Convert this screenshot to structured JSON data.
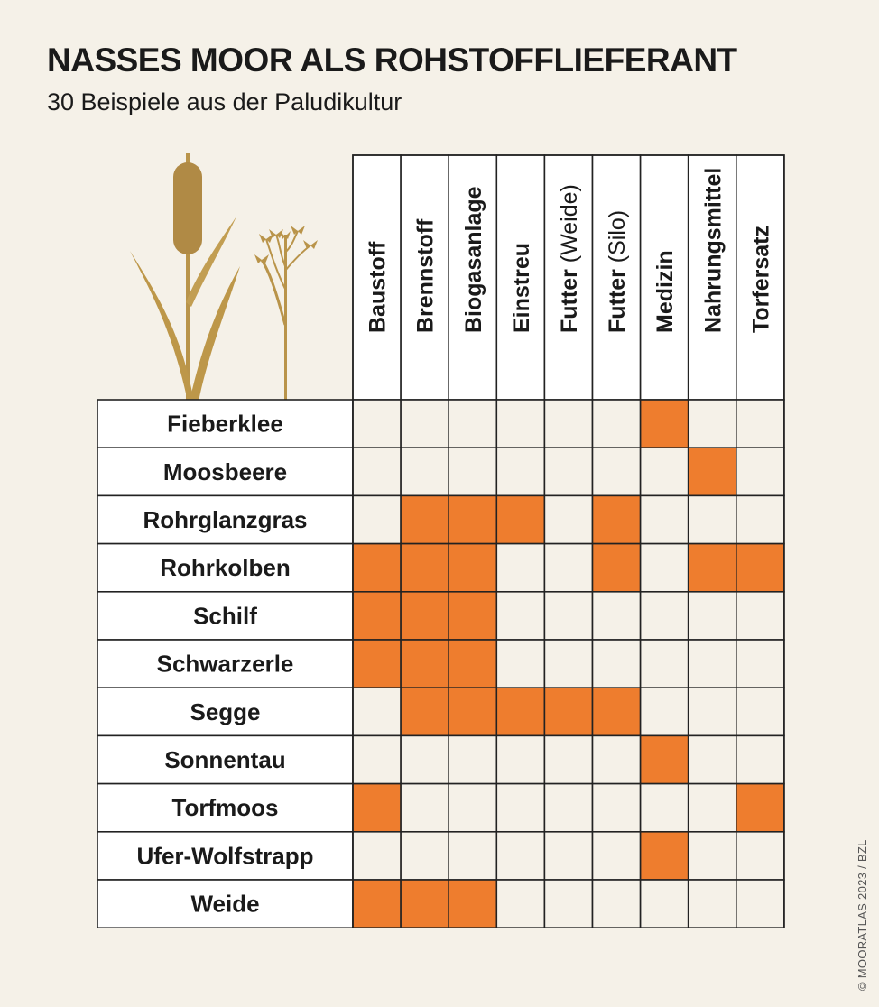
{
  "title": "NASSES MOOR ALS ROHSTOFFLIEFERANT",
  "subtitle": "30 Beispiele aus der Paludikultur",
  "credit": "© MOORATLAS 2023 / BZL",
  "colors": {
    "background": "#f5f1e8",
    "filled": "#ee7d2e",
    "filled_dark": "#ec7410",
    "cell": "#ffffff",
    "border": "#222222",
    "plant": "#b9944a"
  },
  "chart_data": {
    "type": "table",
    "columns": [
      {
        "main": "Baustoff",
        "sub": ""
      },
      {
        "main": "Brennstoff",
        "sub": ""
      },
      {
        "main": "Biogasanlage",
        "sub": ""
      },
      {
        "main": "Einstreu",
        "sub": ""
      },
      {
        "main": "Futter",
        "sub": "(Weide)"
      },
      {
        "main": "Futter",
        "sub": "(Silo)"
      },
      {
        "main": "Medizin",
        "sub": ""
      },
      {
        "main": "Nahrungsmittel",
        "sub": ""
      },
      {
        "main": "Torfersatz",
        "sub": ""
      }
    ],
    "rows": [
      {
        "label": "Fieberklee",
        "values": [
          0,
          0,
          0,
          0,
          0,
          0,
          1,
          0,
          0
        ]
      },
      {
        "label": "Moosbeere",
        "values": [
          0,
          0,
          0,
          0,
          0,
          0,
          0,
          1,
          0
        ]
      },
      {
        "label": "Rohrglanzgras",
        "values": [
          0,
          1,
          1,
          1,
          0,
          1,
          0,
          0,
          0
        ]
      },
      {
        "label": "Rohrkolben",
        "values": [
          1,
          1,
          1,
          0,
          0,
          1,
          0,
          1,
          1
        ]
      },
      {
        "label": "Schilf",
        "values": [
          1,
          1,
          1,
          0,
          0,
          0,
          0,
          0,
          0
        ]
      },
      {
        "label": "Schwarzerle",
        "values": [
          1,
          1,
          1,
          0,
          0,
          0,
          0,
          0,
          0
        ]
      },
      {
        "label": "Segge",
        "values": [
          0,
          1,
          1,
          1,
          1,
          1,
          0,
          0,
          0
        ]
      },
      {
        "label": "Sonnentau",
        "values": [
          0,
          0,
          0,
          0,
          0,
          0,
          1,
          0,
          0
        ]
      },
      {
        "label": "Torfmoos",
        "values": [
          1,
          0,
          0,
          0,
          0,
          0,
          0,
          0,
          1
        ]
      },
      {
        "label": "Ufer-Wolfstrapp",
        "values": [
          0,
          0,
          0,
          0,
          0,
          0,
          1,
          0,
          0
        ]
      },
      {
        "label": "Weide",
        "values": [
          1,
          1,
          1,
          0,
          0,
          0,
          0,
          0,
          0
        ]
      }
    ]
  }
}
